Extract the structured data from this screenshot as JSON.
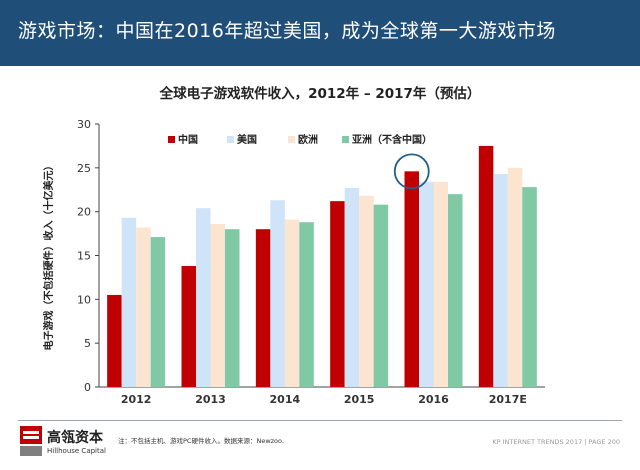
{
  "header": {
    "title": "游戏市场：中国在2016年超过美国，成为全球第一大游戏市场",
    "bg_color": "#1f4e79"
  },
  "chart_data": {
    "type": "bar",
    "title": "全球电子游戏软件收入，2012年 – 2017年（预估）",
    "xlabel": "",
    "ylabel": "电子游戏（不包括硬件）收入（十亿美元）",
    "categories": [
      "2012",
      "2013",
      "2014",
      "2015",
      "2016",
      "2017E"
    ],
    "ylim": [
      0,
      30
    ],
    "yticks": [
      0,
      5,
      10,
      15,
      20,
      25,
      30
    ],
    "grid": false,
    "legend_position": "top",
    "series": [
      {
        "name": "中国",
        "color": "#c00000",
        "values": [
          10.5,
          13.8,
          18.0,
          21.2,
          24.6,
          27.5
        ]
      },
      {
        "name": "美国",
        "color": "#cfe3f9",
        "values": [
          19.3,
          20.4,
          21.3,
          22.7,
          23.4,
          24.3
        ]
      },
      {
        "name": "欧洲",
        "color": "#fbe4d0",
        "values": [
          18.2,
          18.6,
          19.1,
          21.8,
          23.4,
          25.0
        ]
      },
      {
        "name": "亚洲（不含中国）",
        "color": "#7fcaa5",
        "values": [
          17.1,
          18.0,
          18.8,
          20.8,
          22.0,
          22.8
        ]
      }
    ],
    "annotation": {
      "type": "circle",
      "category": "2016",
      "series": "中国",
      "color": "#1f5f8b"
    }
  },
  "footer": {
    "brand_cn": "高瓴资本",
    "brand_en": "Hillhouse Capital",
    "note": "注：不包括主机、游戏PC硬件收入。数据来源：Newzoo.",
    "page_ref": "KP INTERNET TRENDS 2017  |  PAGE 200"
  }
}
